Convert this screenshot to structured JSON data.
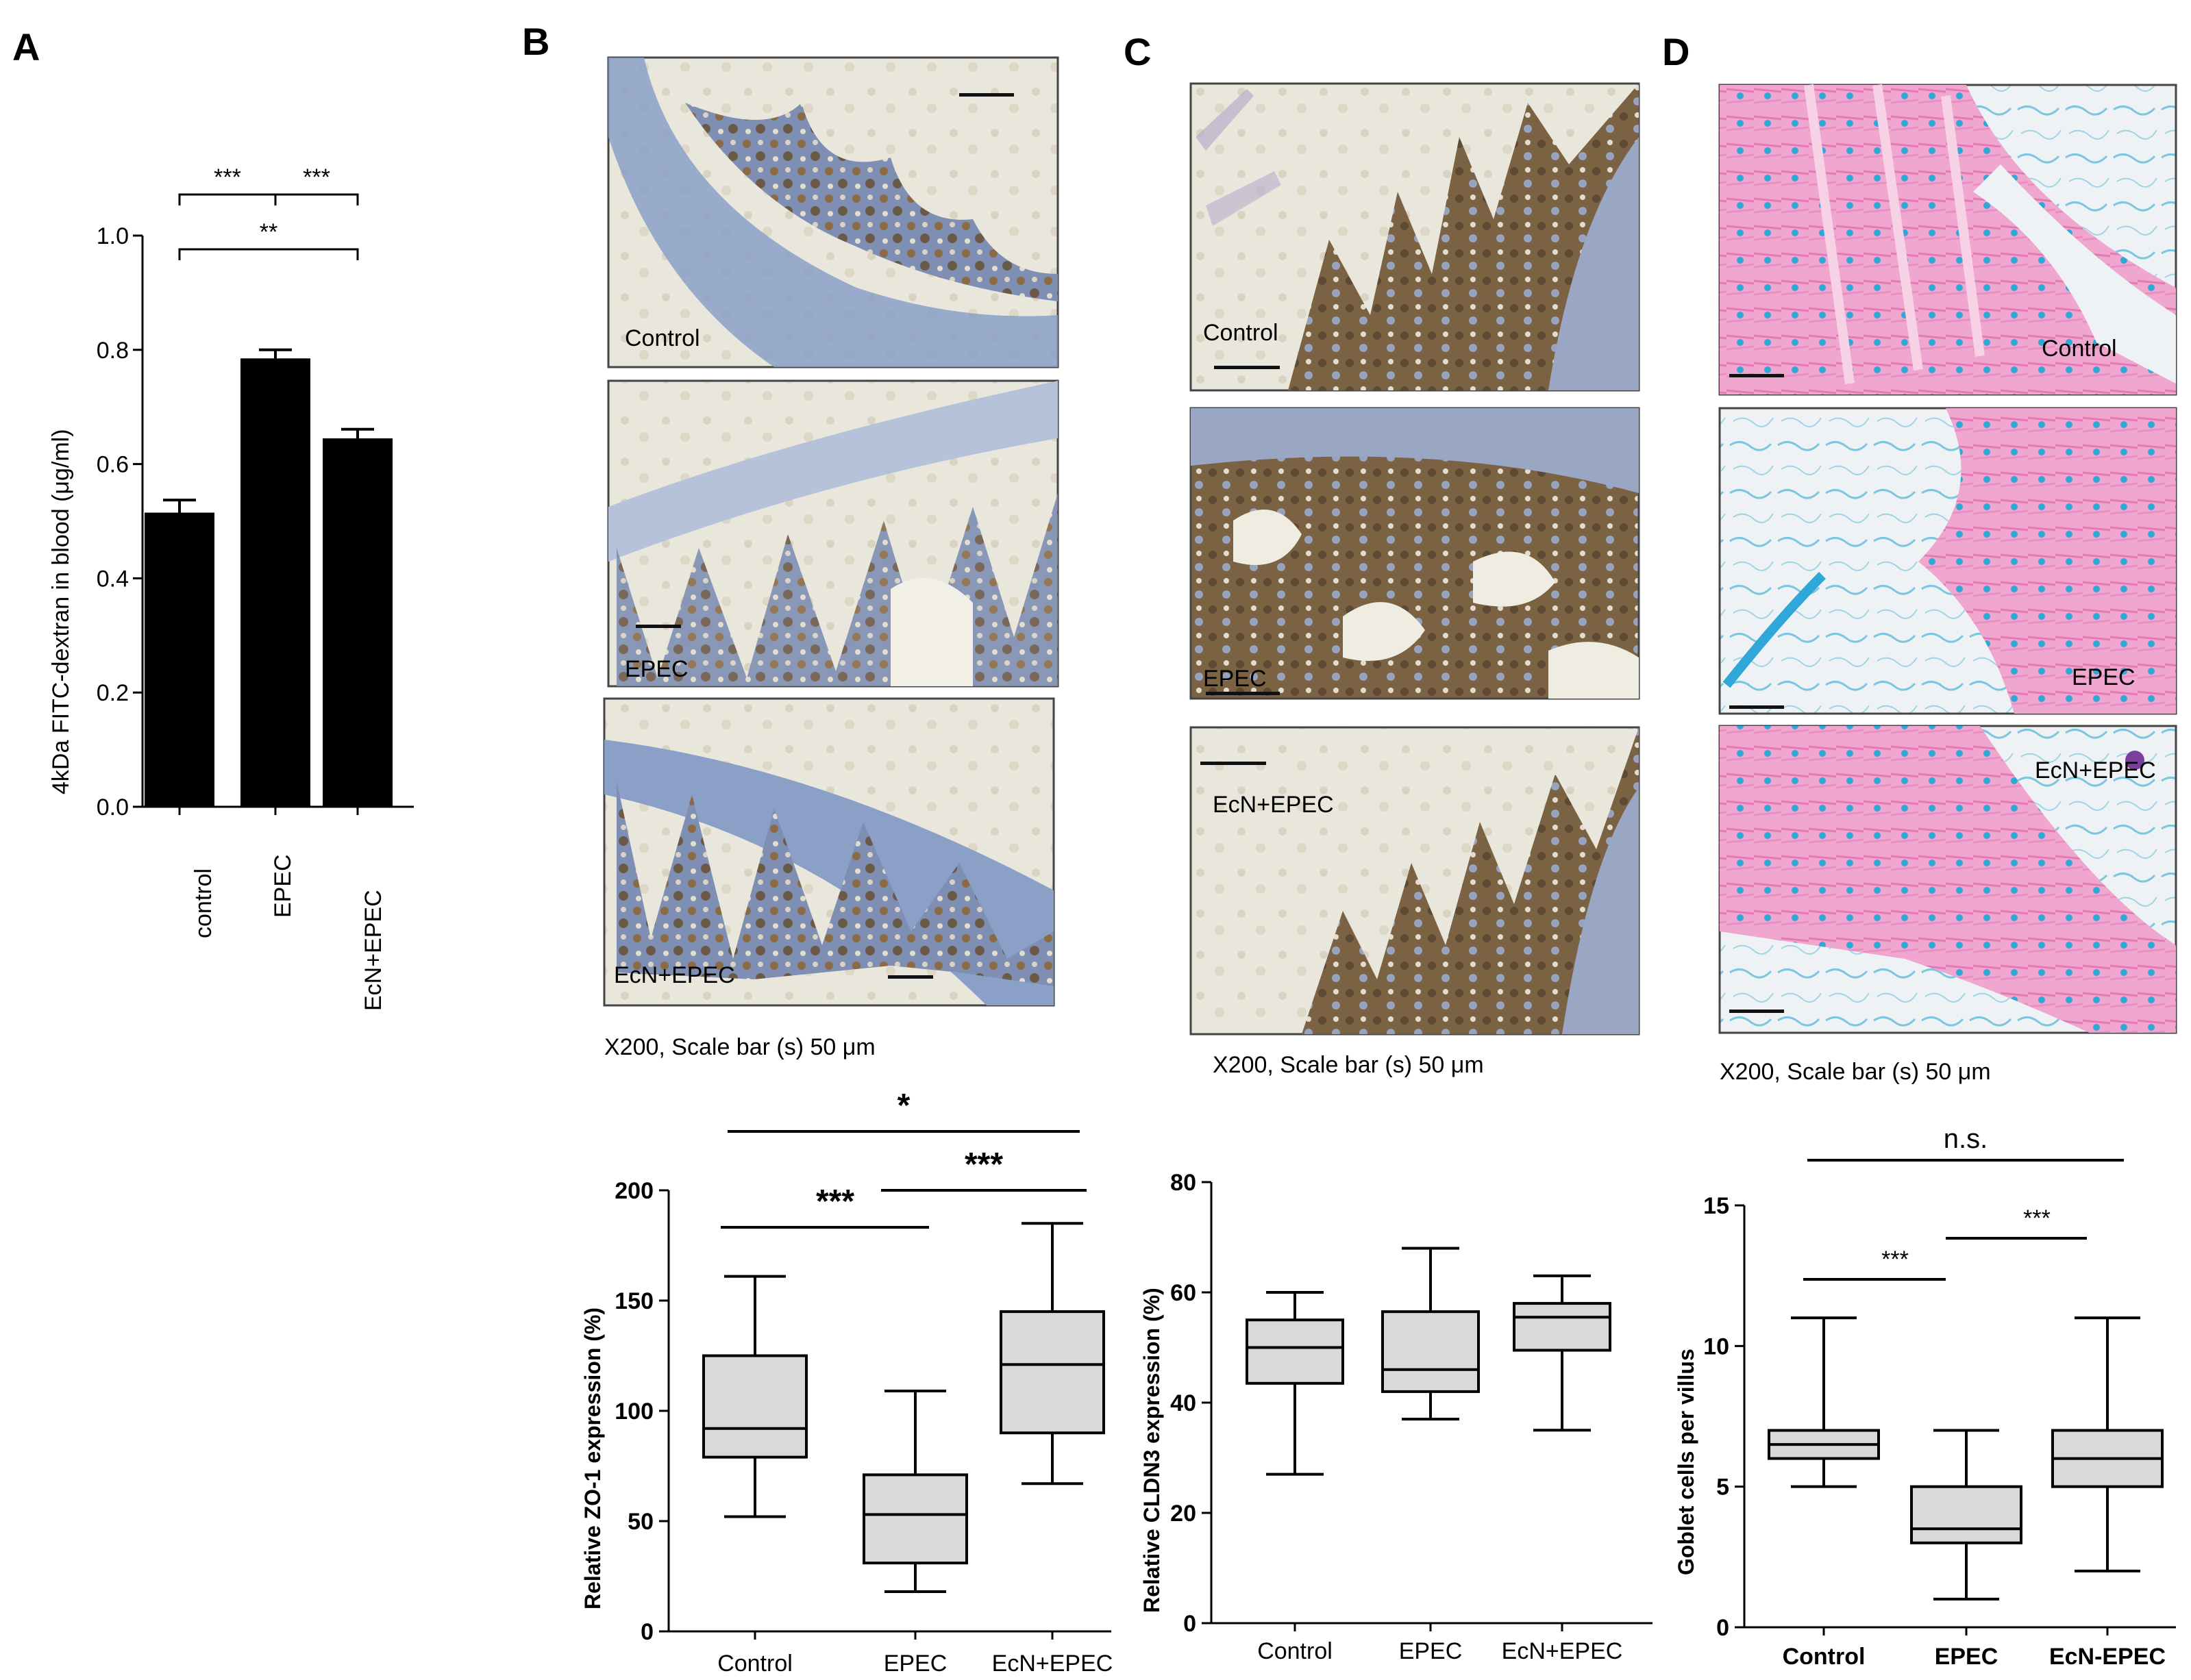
{
  "panels": {
    "A": "A",
    "B": "B",
    "C": "C",
    "D": "D"
  },
  "colors": {
    "bar_fill": "#000000",
    "box_fill": "#d9d9d9",
    "stain_brown_bg": "#e9e7dc",
    "stain_brown_tissue": "#8a6a45",
    "stain_blue": "#5a78b0",
    "stain_pink": "#e889c0",
    "stain_cyan": "#4fb3d6"
  },
  "images": {
    "B": {
      "labels": [
        "Control",
        "EPEC",
        "EcN+EPEC"
      ],
      "caption": "X200, Scale bar (s) 50 μm"
    },
    "C": {
      "labels": [
        "Control",
        "EPEC",
        "EcN+EPEC"
      ],
      "caption": "X200, Scale bar (s) 50 μm"
    },
    "D": {
      "labels": [
        "Control",
        "EPEC",
        "EcN+EPEC"
      ],
      "caption": "X200, Scale bar (s) 50 μm"
    }
  },
  "chart_data": [
    {
      "id": "A",
      "type": "bar",
      "categories": [
        "control",
        "EPEC",
        "EcN+EPEC"
      ],
      "values": [
        0.515,
        0.785,
        0.645
      ],
      "errors": [
        0.022,
        0.015,
        0.016
      ],
      "ylabel": "4kDa FITC-dextran in blood (μg/ml)",
      "ylim": [
        0,
        1.0
      ],
      "yticks": [
        "0.0",
        "0.2",
        "0.4",
        "0.6",
        "0.8",
        "1.0"
      ],
      "significance": [
        {
          "from": 0,
          "to": 2,
          "label": "**"
        },
        {
          "from": 0,
          "to": 1,
          "label": "***"
        },
        {
          "from": 1,
          "to": 2,
          "label": "***"
        }
      ]
    },
    {
      "id": "B-quant",
      "type": "box",
      "categories": [
        "Control",
        "EPEC",
        "EcN+EPEC"
      ],
      "boxes": [
        {
          "min": 52,
          "q1": 79,
          "median": 92,
          "q3": 125,
          "max": 161
        },
        {
          "min": 18,
          "q1": 31,
          "median": 53,
          "q3": 71,
          "max": 109
        },
        {
          "min": 67,
          "q1": 90,
          "median": 121,
          "q3": 145,
          "max": 185
        }
      ],
      "ylabel": "Relative ZO-1 expression (%)",
      "ylim": [
        0,
        200
      ],
      "yticks": [
        "0",
        "50",
        "100",
        "150",
        "200"
      ],
      "significance": [
        {
          "from": 0,
          "to": 2,
          "label": "*"
        },
        {
          "from": 0,
          "to": 1,
          "label": "***"
        },
        {
          "from": 1,
          "to": 2,
          "label": "***"
        }
      ]
    },
    {
      "id": "C-quant",
      "type": "box",
      "categories": [
        "Control",
        "EPEC",
        "EcN+EPEC"
      ],
      "boxes": [
        {
          "min": 27,
          "q1": 43.5,
          "median": 50,
          "q3": 55,
          "max": 60
        },
        {
          "min": 37,
          "q1": 42,
          "median": 46,
          "q3": 56.5,
          "max": 68
        },
        {
          "min": 35,
          "q1": 49.5,
          "median": 55.5,
          "q3": 58,
          "max": 63
        }
      ],
      "ylabel": "Relative CLDN3 expression (%)",
      "ylim": [
        0,
        80
      ],
      "yticks": [
        "0",
        "20",
        "40",
        "60",
        "80"
      ],
      "significance": []
    },
    {
      "id": "D-quant",
      "type": "box",
      "categories": [
        "Control",
        "EPEC",
        "EcN-EPEC"
      ],
      "boxes": [
        {
          "min": 5,
          "q1": 6,
          "median": 6.5,
          "q3": 7,
          "max": 11
        },
        {
          "min": 1,
          "q1": 3,
          "median": 3.5,
          "q3": 5,
          "max": 7
        },
        {
          "min": 2,
          "q1": 5,
          "median": 6,
          "q3": 7,
          "max": 11
        }
      ],
      "ylabel": "Goblet cells per villus",
      "ylim": [
        0,
        15
      ],
      "yticks": [
        "0",
        "5",
        "10",
        "15"
      ],
      "significance": [
        {
          "from": 0,
          "to": 2,
          "label": "n.s."
        },
        {
          "from": 0,
          "to": 1,
          "label": "***"
        },
        {
          "from": 1,
          "to": 2,
          "label": "***"
        }
      ]
    }
  ]
}
